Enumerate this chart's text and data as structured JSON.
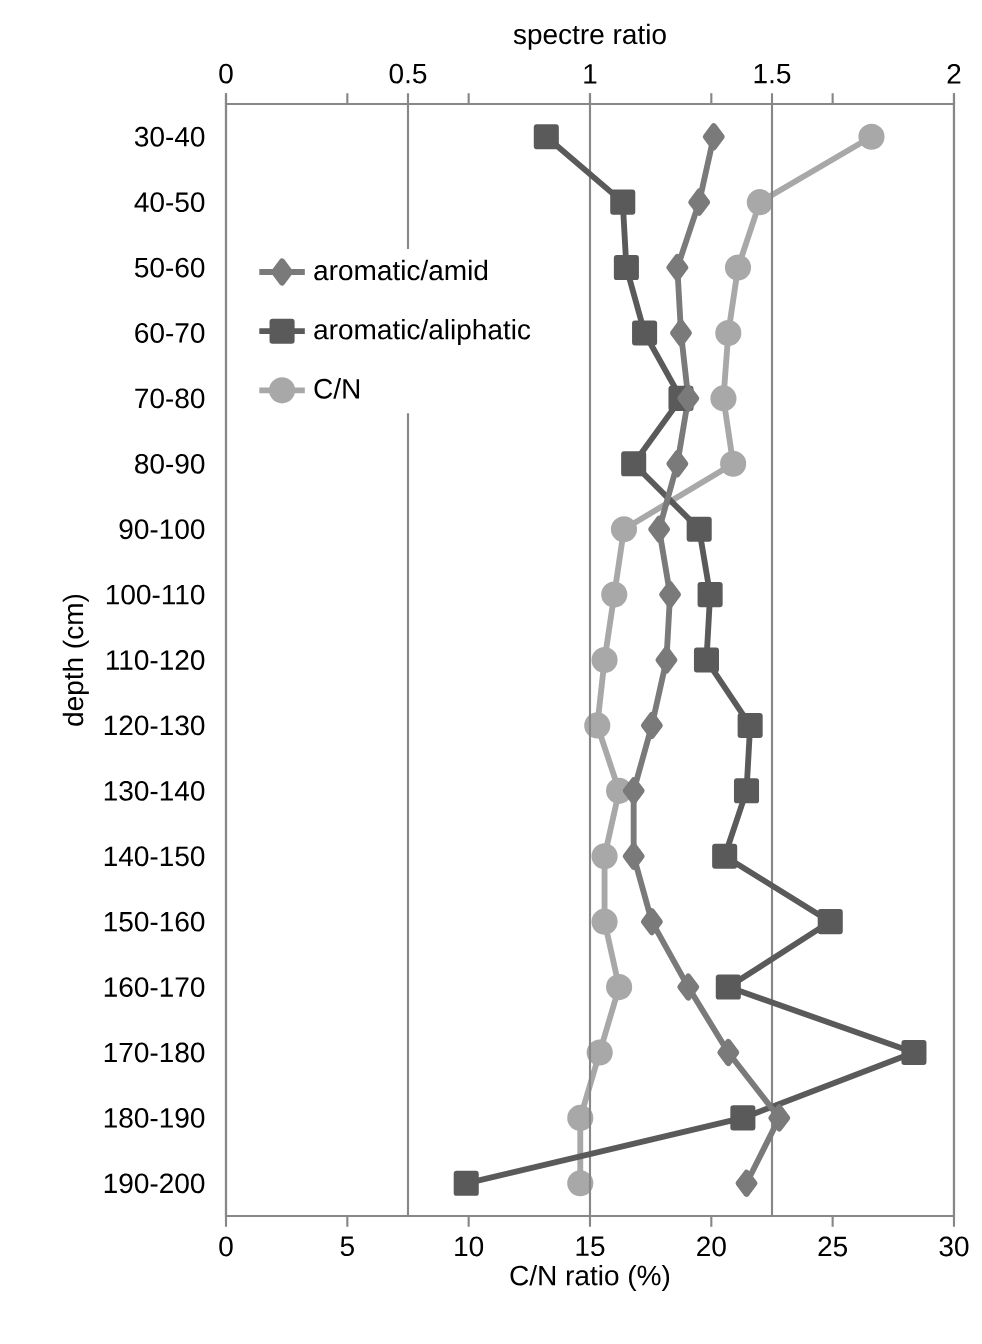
{
  "chart_data": {
    "type": "line",
    "orientation": "horizontal",
    "xlabel": "C/N ratio (%)",
    "x2label": "spectre ratio",
    "ylabel": "depth (cm)",
    "categories": [
      "30-40",
      "40-50",
      "50-60",
      "60-70",
      "70-80",
      "80-90",
      "90-100",
      "100-110",
      "110-120",
      "120-130",
      "130-140",
      "140-150",
      "150-160",
      "160-170",
      "170-180",
      "180-190",
      "190-200"
    ],
    "series": [
      {
        "name": "aromatic/amid",
        "color": "#7a7a7a",
        "marker": "diamond",
        "axis": "x2",
        "values": [
          1.34,
          1.3,
          1.24,
          1.25,
          1.27,
          1.24,
          1.19,
          1.22,
          1.21,
          1.17,
          1.12,
          1.12,
          1.17,
          1.27,
          1.38,
          1.52,
          1.43
        ]
      },
      {
        "name": "aromatic/aliphatic",
        "color": "#5a5a5a",
        "marker": "square",
        "axis": "x2",
        "values": [
          0.88,
          1.09,
          1.1,
          1.15,
          1.25,
          1.12,
          1.3,
          1.33,
          1.32,
          1.44,
          1.43,
          1.37,
          1.66,
          1.38,
          1.89,
          1.42,
          0.66
        ]
      },
      {
        "name": "C/N",
        "color": "#a8a8a8",
        "marker": "circle",
        "values": [
          26.6,
          22.0,
          21.1,
          20.7,
          20.5,
          20.9,
          16.4,
          16.0,
          15.6,
          15.3,
          16.2,
          15.6,
          15.6,
          16.2,
          15.4,
          14.6,
          14.6
        ]
      }
    ],
    "xlim": [
      0,
      30
    ],
    "xticks": [
      0,
      5,
      10,
      15,
      20,
      25,
      30
    ],
    "x2lim": [
      0,
      2
    ],
    "x2ticks": [
      0,
      0.5,
      1,
      1.5,
      2
    ],
    "grid": "x",
    "legend": "left"
  }
}
